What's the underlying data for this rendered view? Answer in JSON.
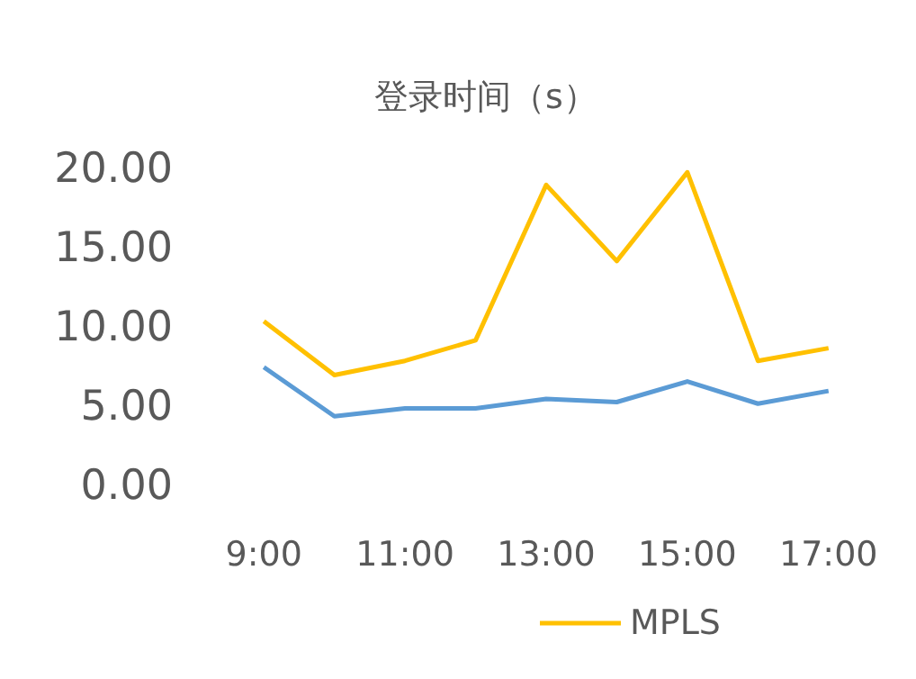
{
  "chart_data": {
    "type": "line",
    "title": "登录时间（s）",
    "categories": [
      "9:00",
      null,
      "11:00",
      null,
      "13:00",
      null,
      "15:00",
      null,
      "17:00"
    ],
    "series": [
      {
        "color": "#5b9bd5",
        "values": [
          7.4,
          4.3,
          4.8,
          4.8,
          5.4,
          5.2,
          6.5,
          5.1,
          5.9
        ]
      },
      {
        "name": "MPLS",
        "color": "#ffc000",
        "values": [
          10.3,
          6.9,
          7.8,
          9.1,
          18.9,
          14.1,
          19.7,
          7.8,
          8.6
        ]
      }
    ],
    "ylim": [
      0,
      20
    ],
    "yticks": [
      {
        "value": 0,
        "label": "0.00"
      },
      {
        "value": 5,
        "label": "5.00"
      },
      {
        "value": 10,
        "label": "10.00"
      },
      {
        "value": 15,
        "label": "15.00"
      },
      {
        "value": 20,
        "label": "20.00"
      }
    ],
    "grid": false,
    "legend": "bottom",
    "marker": "none",
    "line_style": "solid"
  }
}
